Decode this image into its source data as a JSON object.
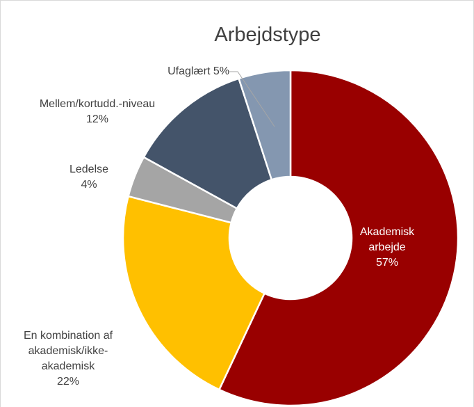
{
  "chart_data": {
    "type": "donut",
    "title": "Arbejdstype",
    "categories": [
      "Akademisk arbejde",
      "En kombination af akademisk/ikke-akademisk",
      "Ledelse",
      "Mellem/kortudd.-niveau",
      "Ufaglært"
    ],
    "values": [
      57,
      22,
      4,
      12,
      5
    ],
    "value_labels": [
      "57%",
      "22%",
      "4%",
      "12%",
      "5%"
    ],
    "colors": [
      "#990000",
      "#ffc000",
      "#a5a5a5",
      "#44546a",
      "#8497b0"
    ]
  }
}
